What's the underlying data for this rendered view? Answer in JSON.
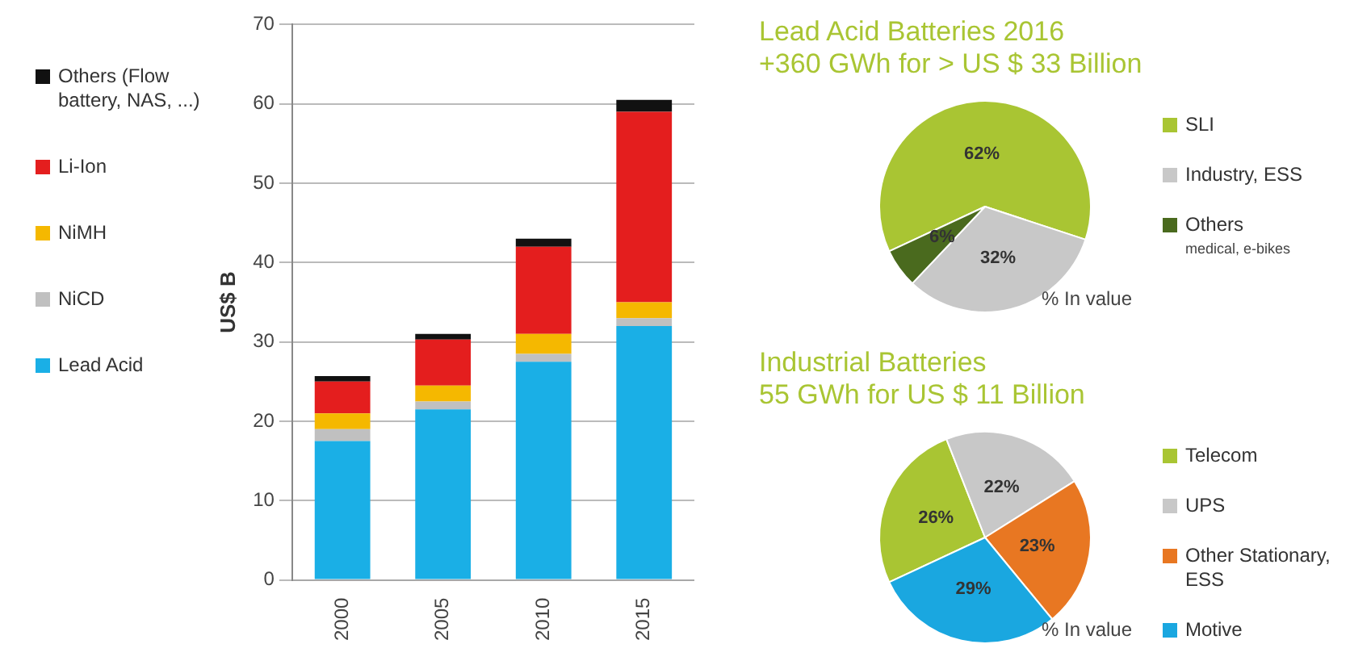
{
  "chart_data": [
    {
      "type": "bar",
      "stacked": true,
      "ylabel": "US$ B",
      "categories": [
        "2000",
        "2005",
        "2010",
        "2015"
      ],
      "ylim": [
        0,
        70
      ],
      "yticks": [
        0,
        10,
        20,
        30,
        40,
        50,
        60,
        70
      ],
      "grid": "y",
      "legend": "left",
      "series": [
        {
          "name": "Lead Acid",
          "color": "#1aafe6",
          "values": [
            17.5,
            21.5,
            27.5,
            32
          ]
        },
        {
          "name": "NiCD",
          "color": "#c0c0c0",
          "values": [
            1.5,
            1,
            1,
            1
          ]
        },
        {
          "name": "NiMH",
          "color": "#f5b800",
          "values": [
            2,
            2,
            2.5,
            2
          ]
        },
        {
          "name": "Li-Ion",
          "color": "#e41e1e",
          "values": [
            4,
            5.8,
            11,
            24
          ]
        },
        {
          "name": "Others (Flow battery, NAS, ...)",
          "color": "#111111",
          "values": [
            0.7,
            0.7,
            1,
            1.5
          ]
        }
      ]
    },
    {
      "type": "pie",
      "title": "Lead Acid Batteries 2016",
      "subtitle": "+360 GWh for > US $ 33 Billion",
      "categories": [
        "SLI",
        "Industry, ESS",
        "Others"
      ],
      "values": [
        62,
        32,
        6
      ],
      "colors": [
        "#a9c533",
        "#c8c8c8",
        "#4a6a1e"
      ],
      "value_labels": [
        "62%",
        "32%",
        "6%"
      ],
      "legend": "right",
      "annotations": [
        "% In value",
        "medical, e-bikes"
      ]
    },
    {
      "type": "pie",
      "title": "Industrial Batteries",
      "subtitle": "55 GWh for US $ 11 Billion",
      "categories": [
        "Telecom",
        "UPS",
        "Other Stationary, ESS",
        "Motive"
      ],
      "values": [
        26,
        22,
        23,
        29
      ],
      "colors": [
        "#a9c533",
        "#c8c8c8",
        "#e87722",
        "#1aa7e0"
      ],
      "value_labels": [
        "26%",
        "22%",
        "23%",
        "29%"
      ],
      "legend": "right",
      "annotations": [
        "% In value"
      ]
    }
  ]
}
